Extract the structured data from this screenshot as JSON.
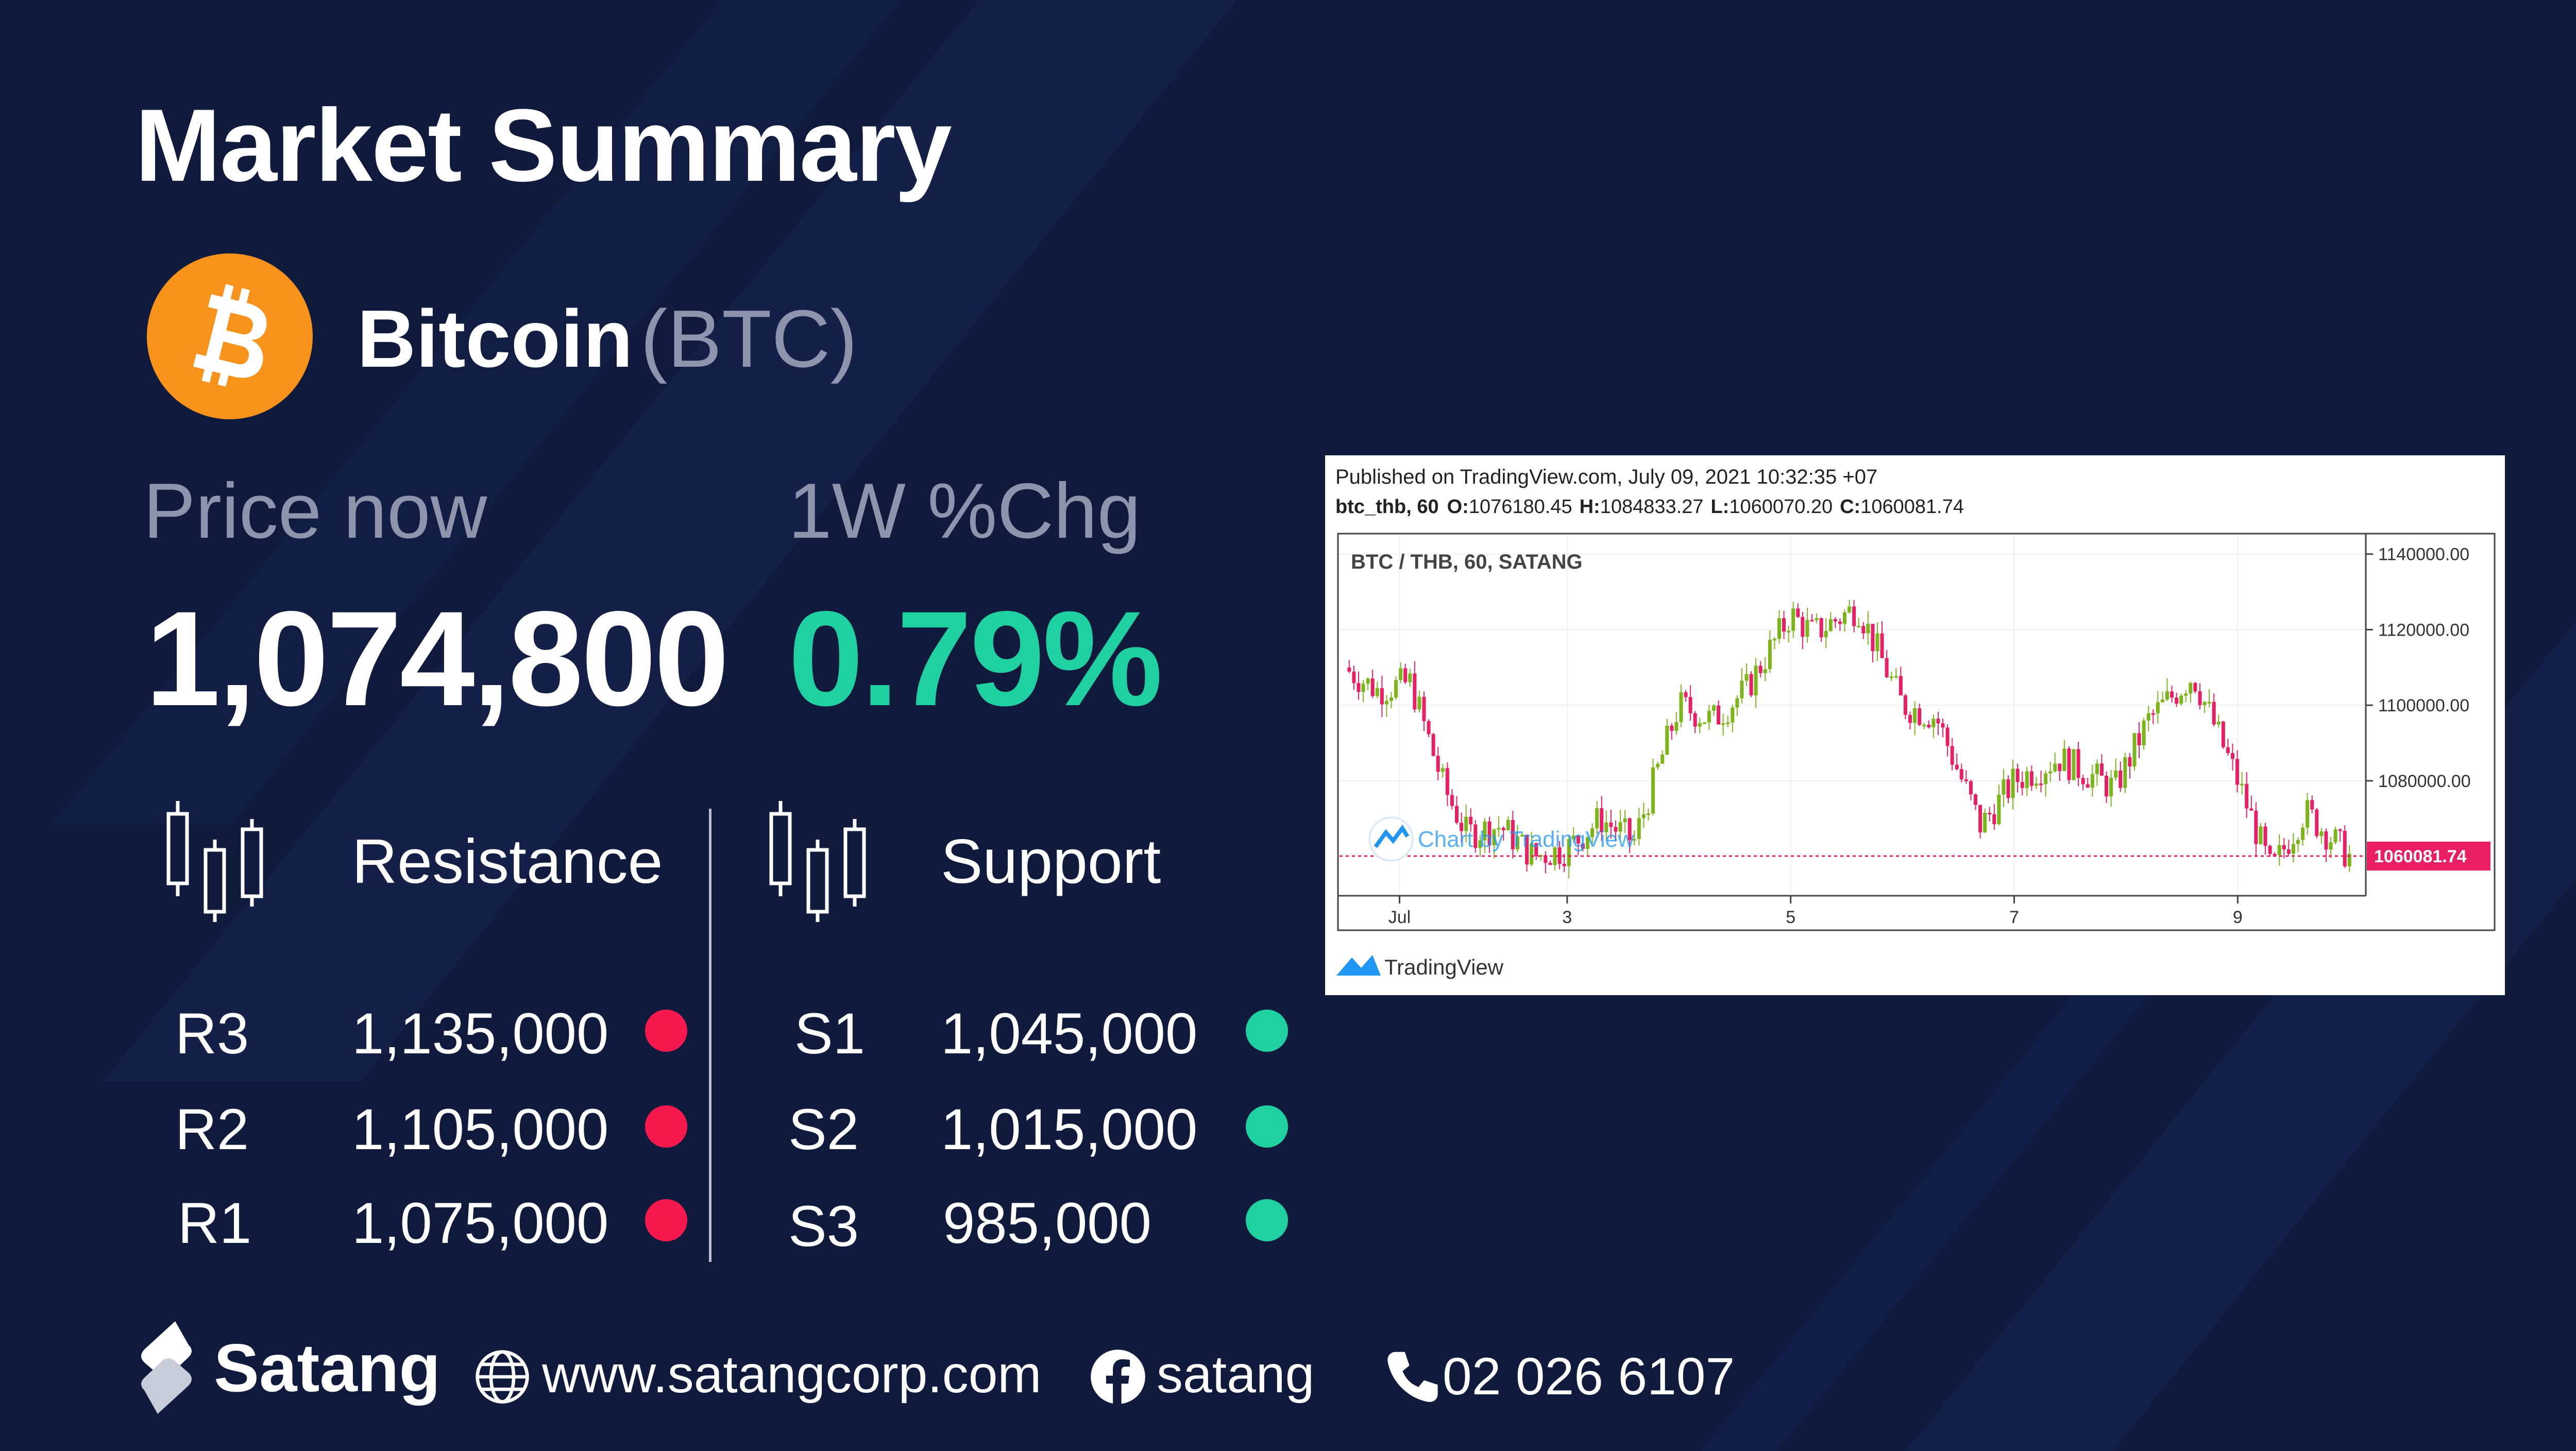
{
  "header": {
    "title": "Market Summary"
  },
  "coin": {
    "name": "Bitcoin",
    "symbol": "(BTC)",
    "logo_icon": "bitcoin-logo-icon",
    "logo_color": "#f7931a"
  },
  "stats": {
    "price_label": "Price now",
    "price_value": "1,074,800",
    "change_label": "1W %Chg",
    "change_value": "0.79%",
    "change_color": "#1fd1a1"
  },
  "resistance": {
    "label": "Resistance",
    "icon": "candlestick-icon",
    "color": "#f5194d",
    "levels": [
      {
        "name": "R3",
        "value": "1,135,000"
      },
      {
        "name": "R2",
        "value": "1,105,000"
      },
      {
        "name": "R1",
        "value": "1,075,000"
      }
    ]
  },
  "support": {
    "label": "Support",
    "icon": "candlestick-icon",
    "color": "#1fd1a1",
    "levels": [
      {
        "name": "S1",
        "value": "1,045,000"
      },
      {
        "name": "S2",
        "value": "1,015,000"
      },
      {
        "name": "S3",
        "value": "985,000"
      }
    ]
  },
  "chart_data": {
    "type": "candlestick",
    "published": "Published on TradingView.com, July 09, 2021 10:32:35 +07",
    "ohlc_line": {
      "symbol": "btc_thb, 60",
      "o_label": "O:",
      "o": "1076180.45",
      "h_label": "H:",
      "h": "1084833.27",
      "l_label": "L:",
      "l": "1060070.20",
      "c_label": "C:",
      "c": "1060081.74"
    },
    "title": "BTC / THB, 60, SATANG",
    "watermark": "Chart by TradingView",
    "footer_brand": "TradingView",
    "y_ticks": [
      "1140000.00",
      "1120000.00",
      "1100000.00",
      "1080000.00"
    ],
    "y_tick_values": [
      1140000,
      1120000,
      1100000,
      1080000
    ],
    "ylim": [
      1050000,
      1145000
    ],
    "x_ticks": [
      "Jul",
      "3",
      "5",
      "7",
      "9"
    ],
    "x_tick_positions": [
      0.5,
      2.0,
      4.0,
      6.0,
      8.0
    ],
    "xlim": [
      0,
      9.1
    ],
    "last_price": 1060081.74,
    "last_price_label": "1060081.74",
    "up_color": "#7cb518",
    "down_color": "#e91e63",
    "path_days": [
      0.0,
      0.3,
      0.6,
      0.9,
      1.1,
      1.4,
      1.7,
      2.0,
      2.3,
      2.6,
      3.0,
      3.3,
      3.6,
      4.0,
      4.2,
      4.6,
      5.0,
      5.3,
      5.7,
      6.0,
      6.4,
      6.9,
      7.2,
      7.6,
      8.0,
      8.3,
      8.6,
      9.0
    ],
    "path_closes": [
      1110000,
      1104000,
      1106000,
      1078000,
      1066000,
      1068000,
      1060000,
      1062000,
      1070000,
      1064000,
      1100000,
      1096000,
      1104000,
      1124000,
      1119000,
      1126000,
      1100000,
      1097000,
      1068000,
      1080000,
      1086000,
      1078000,
      1096000,
      1108000,
      1080000,
      1056000,
      1072000,
      1060000
    ]
  },
  "footer": {
    "brand": "Satang",
    "brand_icon": "satang-logo-icon",
    "website_icon": "globe-icon",
    "website": "www.satangcorp.com",
    "social_icon": "facebook-icon",
    "social": "satang",
    "phone_icon": "phone-icon",
    "phone": "02 026 6107"
  }
}
